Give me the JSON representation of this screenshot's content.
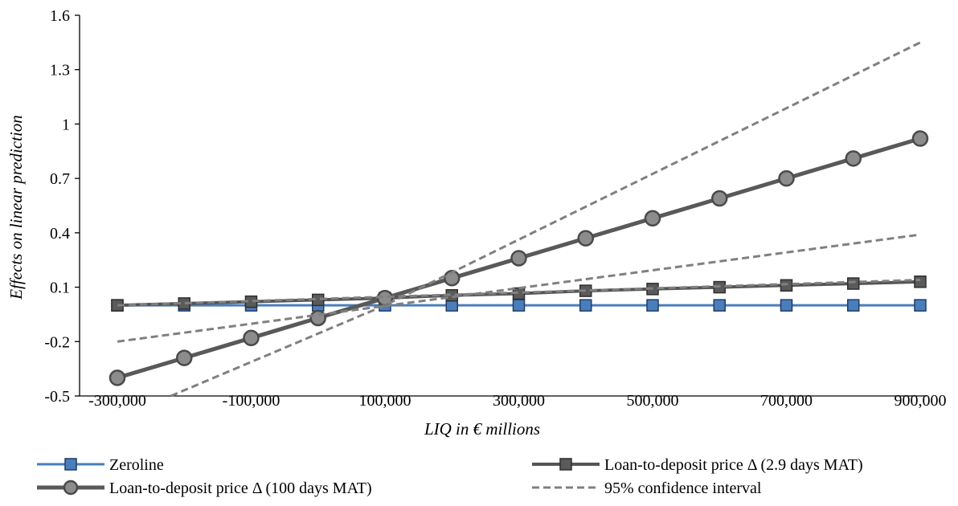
{
  "chart_data": {
    "type": "line",
    "xlabel": "LIQ in € millions",
    "ylabel": "Effects on linear prediction",
    "xlim": [
      -300000,
      900000
    ],
    "ylim": [
      -0.5,
      1.6
    ],
    "x_tick_values": [
      -300000,
      -100000,
      100000,
      300000,
      500000,
      700000,
      900000
    ],
    "x_tick_labels": [
      "-300,000",
      "-100,000",
      "100,000",
      "300,000",
      "500,000",
      "700,000",
      "900,000"
    ],
    "y_tick_values": [
      -0.5,
      -0.2,
      0.1,
      0.4,
      0.7,
      1.0,
      1.3,
      1.6
    ],
    "y_tick_labels": [
      "-0.5",
      "-0.2",
      "0.1",
      "0.4",
      "0.7",
      "1",
      "1.3",
      "1.6"
    ],
    "x": [
      -300000,
      -200000,
      -100000,
      0,
      100000,
      200000,
      300000,
      400000,
      500000,
      600000,
      700000,
      800000,
      900000
    ],
    "series": [
      {
        "name": "Zeroline",
        "role": "zeroline",
        "color": "#4a7ebb",
        "marker": "square",
        "values": [
          0,
          0,
          0,
          0,
          0,
          0,
          0,
          0,
          0,
          0,
          0,
          0,
          0
        ]
      },
      {
        "name": "Loan-to-deposit price Δ (2.9 days MAT)",
        "role": "short",
        "color": "#555555",
        "marker": "square",
        "values": [
          0.0,
          0.01,
          0.02,
          0.03,
          0.04,
          0.055,
          0.065,
          0.08,
          0.09,
          0.1,
          0.11,
          0.12,
          0.13
        ]
      },
      {
        "name": "Loan-to-deposit price Δ (100 days MAT)",
        "role": "long",
        "color": "#595959",
        "marker": "circle",
        "values": [
          -0.4,
          -0.29,
          -0.18,
          -0.07,
          0.04,
          0.15,
          0.26,
          0.37,
          0.48,
          0.59,
          0.7,
          0.81,
          0.92
        ]
      },
      {
        "name": "95% confidence interval",
        "role": "ci",
        "color": "#808080",
        "marker": "none",
        "bands": [
          {
            "x": [
              -300000,
              900000
            ],
            "values": [
              -0.2,
              0.39
            ]
          },
          {
            "x": [
              -220000,
              100000,
              900000
            ],
            "values": [
              -0.5,
              0.0,
              1.45
            ]
          },
          {
            "x": [
              -300000,
              900000
            ],
            "values": [
              0.0,
              0.14
            ]
          }
        ]
      }
    ],
    "legend": {
      "position": "bottom",
      "items": [
        {
          "label": "Zeroline",
          "series": 0
        },
        {
          "label": "Loan-to-deposit price Δ (2.9 days MAT)",
          "series": 1
        },
        {
          "label": "Loan-to-deposit price Δ (100 days MAT)",
          "series": 2
        },
        {
          "label": "95% confidence interval",
          "series": 3
        }
      ]
    },
    "grid": false
  }
}
